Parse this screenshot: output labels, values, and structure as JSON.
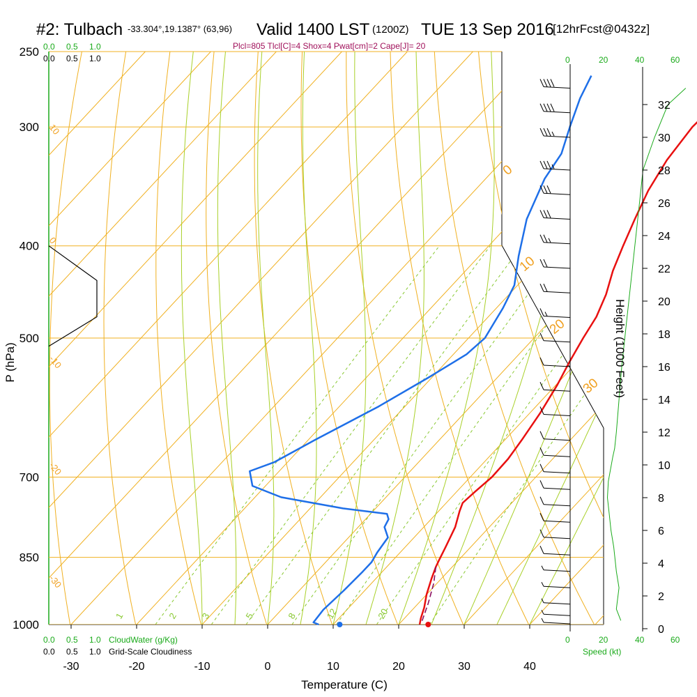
{
  "header": {
    "station": "#2: Tulbach",
    "coords": "-33.304°,19.1387° (63,96)",
    "valid": "Valid 1400 LST",
    "utc": "(1200Z)",
    "date": "TUE 13 Sep 2016",
    "fcst": "[12hrFcst@0432z]",
    "params": "Plcl=805 Tlcl[C]=4 Shox=4 Pwat[cm]=2 Cape[J]= 20"
  },
  "scales": {
    "cloud_ticks": [
      "0.0",
      "0.5",
      "1.0"
    ],
    "cloudwater_label": "CloudWater (g/Kg)",
    "cloudiness_label": "Grid-Scale Cloudiness",
    "speed_ticks": [
      "0",
      "20",
      "40",
      "60"
    ],
    "speed_label": "Speed (kt)"
  },
  "chart_data": {
    "type": "line",
    "title": "",
    "xlabel": "Temperature (C)",
    "ylabel": "P (hPa)",
    "y2label": "Height (1000 Feet)",
    "x_ticks": [
      -30,
      -20,
      -10,
      0,
      10,
      20,
      30,
      40
    ],
    "p_ticks": [
      250,
      300,
      400,
      500,
      700,
      850,
      1000
    ],
    "height_ticks": [
      0,
      2,
      4,
      6,
      8,
      10,
      12,
      14,
      16,
      18,
      20,
      22,
      24,
      26,
      28,
      30,
      32
    ],
    "xlim": [
      -34,
      36
    ],
    "plim": [
      250,
      1000
    ],
    "dry_adiabat_labels": [
      "10",
      "0",
      "-10",
      "-20",
      "-30"
    ],
    "moist_adiabat_labels": [
      "0",
      "10",
      "20",
      "30"
    ],
    "mixing_ratio_labels": [
      "1",
      "2",
      "3",
      "5",
      "8",
      "12",
      "20"
    ],
    "colors": {
      "temperature": "#e81010",
      "dewpoint": "#1e6fe8",
      "isobar": "#f0b020",
      "isotherm": "#f0b020",
      "moist_adiabat": "#a8d028",
      "mixing_ratio": "#88c830",
      "parcel": "#8a1060",
      "params_text": "#a0105a",
      "green_text": "#1aaa1a"
    },
    "series": [
      {
        "name": "Temperature",
        "points": [
          [
            -4.0,
            265
          ],
          [
            -5.5,
            285
          ],
          [
            -5.8,
            300
          ],
          [
            -5.0,
            325
          ],
          [
            -3.5,
            350
          ],
          [
            -1.5,
            375
          ],
          [
            0.5,
            400
          ],
          [
            2.5,
            425
          ],
          [
            4.8,
            450
          ],
          [
            6.5,
            475
          ],
          [
            7.5,
            500
          ],
          [
            8.8,
            530
          ],
          [
            10.2,
            560
          ],
          [
            11.6,
            600
          ],
          [
            12.6,
            640
          ],
          [
            13.2,
            670
          ],
          [
            13.3,
            700
          ],
          [
            12.8,
            725
          ],
          [
            12.5,
            745
          ],
          [
            13.2,
            760
          ],
          [
            14.8,
            790
          ],
          [
            16.2,
            830
          ],
          [
            17.0,
            855
          ],
          [
            17.5,
            870
          ],
          [
            18.5,
            895
          ],
          [
            20.0,
            930
          ],
          [
            21.5,
            960
          ],
          [
            22.5,
            985
          ],
          [
            23.2,
            1000
          ]
        ]
      },
      {
        "name": "Dewpoint",
        "points": [
          [
            -28.5,
            265
          ],
          [
            -27,
            280
          ],
          [
            -24.5,
            300
          ],
          [
            -22,
            320
          ],
          [
            -21,
            340
          ],
          [
            -18,
            375
          ],
          [
            -14,
            410
          ],
          [
            -10.5,
            440
          ],
          [
            -9,
            465
          ],
          [
            -7.5,
            500
          ],
          [
            -8.0,
            520
          ],
          [
            -10.5,
            550
          ],
          [
            -14,
            590
          ],
          [
            -19,
            640
          ],
          [
            -22,
            675
          ],
          [
            -24.5,
            690
          ],
          [
            -22,
            715
          ],
          [
            -16,
            735
          ],
          [
            -5,
            755
          ],
          [
            2.5,
            765
          ],
          [
            3.5,
            775
          ],
          [
            4.0,
            790
          ],
          [
            6.0,
            810
          ],
          [
            6.5,
            840
          ],
          [
            7.0,
            860
          ],
          [
            7.0,
            880
          ],
          [
            6.8,
            920
          ],
          [
            6.4,
            965
          ],
          [
            6.7,
            995
          ],
          [
            7.8,
            1000
          ]
        ]
      },
      {
        "name": "Parcel",
        "points": [
          [
            17.5,
            870
          ],
          [
            19.5,
            905
          ],
          [
            21.5,
            950
          ],
          [
            23.2,
            995
          ]
        ]
      }
    ],
    "surface_points": [
      {
        "name": "Dewpoint",
        "t": 11.0,
        "p": 1000
      },
      {
        "name": "Temperature",
        "t": 24.5,
        "p": 1000
      }
    ],
    "cloud_fraction": [
      [
        0.0,
        400
      ],
      [
        0.5,
        435
      ],
      [
        0.5,
        475
      ],
      [
        0.0,
        510
      ]
    ],
    "wind_speed_profile": [
      [
        57,
        0.5
      ],
      [
        52,
        1.2
      ],
      [
        55,
        2.5
      ],
      [
        52,
        3.5
      ],
      [
        49,
        5
      ],
      [
        46,
        6
      ],
      [
        44,
        7
      ],
      [
        42,
        8
      ],
      [
        43,
        9
      ],
      [
        48,
        10.5
      ],
      [
        50,
        11
      ],
      [
        52,
        12
      ],
      [
        58,
        16
      ],
      [
        64,
        19
      ],
      [
        70,
        22
      ],
      [
        74,
        24
      ],
      [
        78,
        26
      ],
      [
        82,
        28
      ],
      [
        95,
        30
      ],
      [
        110,
        32
      ],
      [
        130,
        33
      ]
    ],
    "wind_barbs": [
      {
        "h": 33.0,
        "knots": 40
      },
      {
        "h": 31.5,
        "knots": 40
      },
      {
        "h": 30.0,
        "knots": 35
      },
      {
        "h": 28.0,
        "knots": 35
      },
      {
        "h": 26.5,
        "knots": 30
      },
      {
        "h": 25.0,
        "knots": 30
      },
      {
        "h": 23.5,
        "knots": 25
      },
      {
        "h": 22.0,
        "knots": 20
      },
      {
        "h": 20.5,
        "knots": 20
      },
      {
        "h": 19.0,
        "knots": 15
      },
      {
        "h": 17.5,
        "knots": 10
      },
      {
        "h": 16.0,
        "knots": 10
      },
      {
        "h": 14.5,
        "knots": 10
      },
      {
        "h": 13.0,
        "knots": 10
      },
      {
        "h": 11.5,
        "knots": 10
      },
      {
        "h": 10.5,
        "knots": 10
      },
      {
        "h": 9.5,
        "knots": 10
      },
      {
        "h": 8.5,
        "knots": 10
      },
      {
        "h": 7.5,
        "knots": 10
      },
      {
        "h": 6.5,
        "knots": 10
      },
      {
        "h": 5.5,
        "knots": 10
      },
      {
        "h": 4.5,
        "knots": 10
      },
      {
        "h": 3.5,
        "knots": 5
      },
      {
        "h": 2.5,
        "knots": 5
      },
      {
        "h": 1.5,
        "knots": 5
      },
      {
        "h": 0.8,
        "knots": 5
      },
      {
        "h": 0.3,
        "knots": 5
      }
    ]
  }
}
